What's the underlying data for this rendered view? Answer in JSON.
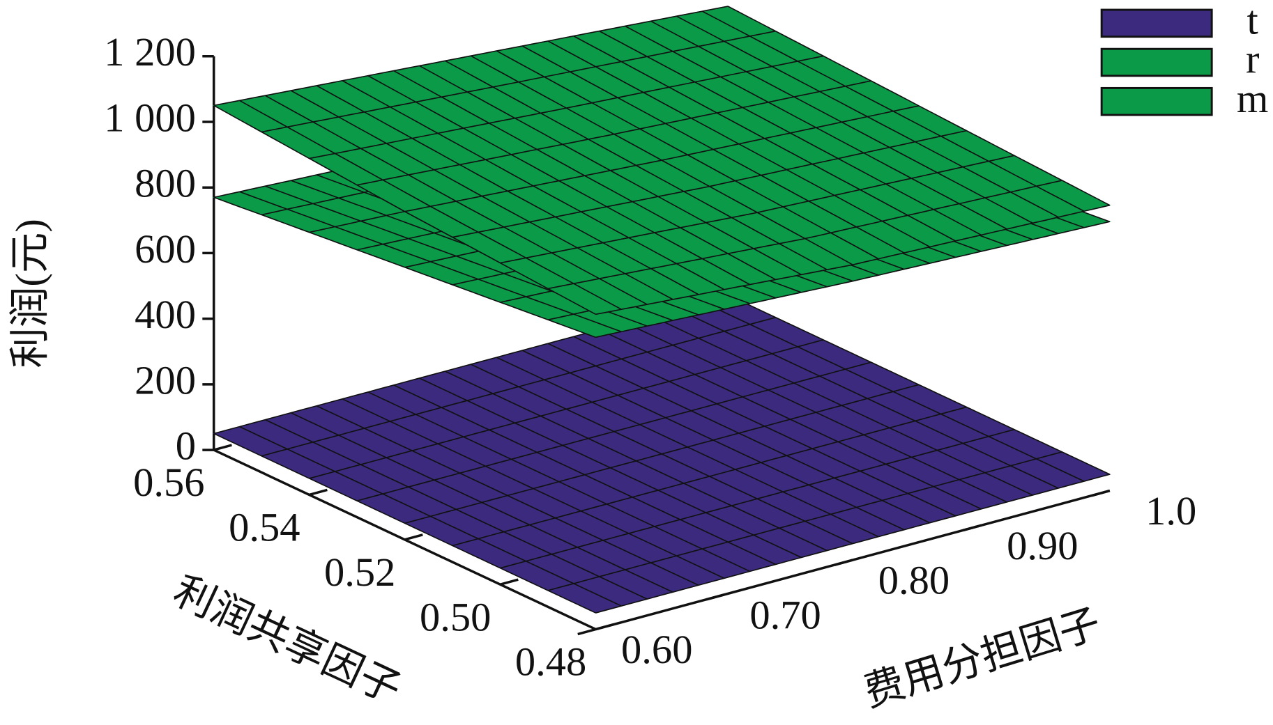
{
  "chart_data": {
    "type": "surface",
    "xlabel": "费用分担因子",
    "ylabel": "利润共享因子",
    "zlabel": "利润(元)",
    "x": [
      0.6,
      0.8,
      1.0
    ],
    "y": [
      0.48,
      0.52,
      0.56
    ],
    "series": [
      {
        "name": "t",
        "color": "#3b2a7e",
        "values": [
          [
            50,
            50,
            50
          ],
          [
            50,
            50,
            50
          ],
          [
            50,
            50,
            50
          ]
        ]
      },
      {
        "name": "r",
        "color": "#0a9a48",
        "values": [
          [
            960,
            900,
            870
          ],
          [
            1000,
            945,
            900
          ],
          [
            1050,
            990,
            930
          ]
        ]
      },
      {
        "name": "m",
        "color": "#0a9a48",
        "values": [
          [
            890,
            850,
            820
          ],
          [
            830,
            790,
            760
          ],
          [
            770,
            730,
            700
          ]
        ]
      }
    ],
    "xlim": [
      0.6,
      1.0
    ],
    "ylim": [
      0.48,
      0.56
    ],
    "zlim": [
      0,
      1200
    ],
    "xticks": [
      {
        "value": 0.6,
        "label": "0.60"
      },
      {
        "value": 0.7,
        "label": "0.70"
      },
      {
        "value": 0.8,
        "label": "0.80"
      },
      {
        "value": 0.9,
        "label": "0.90"
      },
      {
        "value": 1,
        "label": "1.0"
      }
    ],
    "yticks": [
      {
        "value": 0.48,
        "label": "0.48"
      },
      {
        "value": 0.5,
        "label": "0.50"
      },
      0.52,
      0.54,
      0.56
    ],
    "zticks": [
      0,
      200,
      400,
      600,
      800,
      {
        "value": 1000,
        "label": "1 000"
      },
      {
        "value": 1200,
        "label": "1 200"
      }
    ],
    "legend": "upper right"
  }
}
